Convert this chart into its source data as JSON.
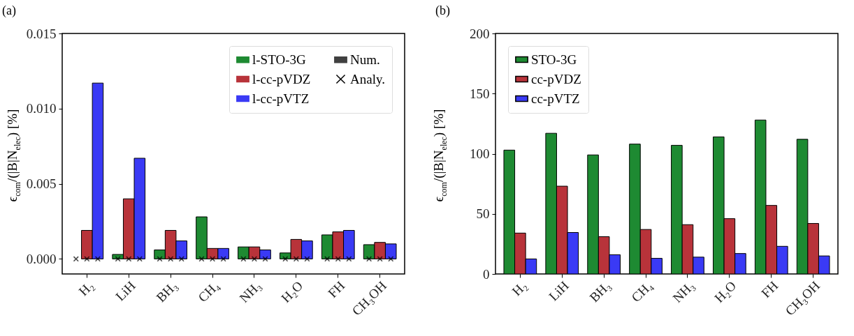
{
  "chart_data": [
    {
      "type": "bar",
      "title": "(a)",
      "ylabel": "ϵ$_{com}$/(|B|N$_{elec}$) [%]",
      "categories": [
        "H₂",
        "LiH",
        "BH₃",
        "CH₄",
        "NH₃",
        "H₂O",
        "FH",
        "CH₃OH"
      ],
      "series": [
        {
          "name": "l-STO-3G",
          "color": "#1e8a32",
          "values": [
            null,
            0.0003,
            0.0006,
            0.0028,
            0.0008,
            0.0004,
            0.0016,
            0.00095
          ]
        },
        {
          "name": "l-cc-pVDZ",
          "color": "#b8333a",
          "values": [
            0.0019,
            0.004,
            0.0019,
            0.0007,
            0.0008,
            0.0013,
            0.0018,
            0.0011
          ]
        },
        {
          "name": "l-cc-pVTZ",
          "color": "#3a3af5",
          "values": [
            0.0117,
            0.0067,
            0.0012,
            0.0007,
            0.0006,
            0.0012,
            0.0019,
            0.001
          ]
        },
        {
          "name": "Num.",
          "color": "#404040",
          "values": [
            null,
            null,
            null,
            null,
            null,
            null,
            null,
            null
          ]
        },
        {
          "name": "Analy.",
          "type": "scatter",
          "marker": "cross",
          "color": "#000000",
          "x": [
            "H₂",
            "LiH",
            "BH₃",
            "CH₄",
            "NH₃",
            "H₂O",
            "FH",
            "CH₃OH"
          ],
          "values": [
            0,
            0,
            0,
            0,
            0,
            0,
            0,
            0
          ]
        },
        {
          "type": "scatter",
          "marker": "cross",
          "color": "#000000",
          "x": [
            "H₂",
            "LiH",
            "BH₃",
            "CH₄",
            "NH₃",
            "H₂O",
            "FH",
            "CH₃OH"
          ],
          "values": [
            0,
            0,
            0,
            0,
            0,
            0,
            0,
            0
          ]
        },
        {
          "type": "scatter",
          "marker": "cross",
          "color": "#000000",
          "x": [
            "H₂",
            "LiH",
            "BH₃",
            "CH₄",
            "NH₃",
            "H₂O",
            "FH",
            "CH₃OH"
          ],
          "values": [
            0,
            0,
            0,
            0,
            0,
            0,
            0,
            0
          ]
        }
      ],
      "ylim": [
        -0.001,
        0.015
      ],
      "yticks": [
        {
          "value": 0,
          "label": "0.000"
        },
        {
          "value": 0.005,
          "label": "0.005"
        },
        {
          "value": 0.01,
          "label": "0.010"
        },
        {
          "value": 0.015,
          "label": "0.015"
        }
      ],
      "legend": "top right"
    },
    {
      "type": "bar",
      "title": "(b)",
      "ylabel": "ϵ$_{com}$/(|B|N$_{elec}$) [%]",
      "categories": [
        "H₂",
        "LiH",
        "BH₃",
        "CH₄",
        "NH₃",
        "H₂O",
        "FH",
        "CH₃OH"
      ],
      "series": [
        {
          "name": "STO-3G",
          "color": "#1e8a32",
          "values": [
            103,
            117,
            99,
            108,
            107,
            114,
            128,
            112
          ]
        },
        {
          "name": "cc-pVDZ",
          "color": "#b8333a",
          "values": [
            34,
            73,
            31,
            37,
            41,
            46,
            57,
            42
          ]
        },
        {
          "name": "cc-pVTZ",
          "color": "#3a3af5",
          "values": [
            12.5,
            34.5,
            16,
            13,
            14,
            17,
            23,
            15
          ]
        }
      ],
      "ylim": [
        0,
        200
      ],
      "yticks": [
        0,
        50,
        100,
        150,
        200
      ],
      "legend": "top left"
    }
  ]
}
